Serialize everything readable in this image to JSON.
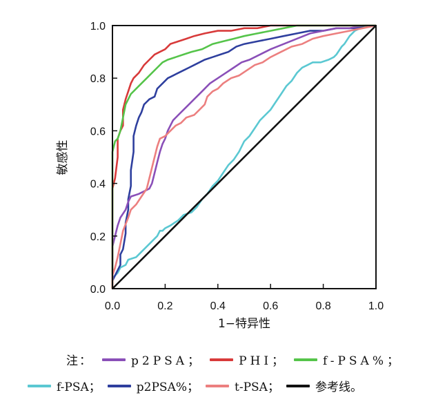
{
  "chart_data": {
    "type": "line",
    "xlabel": "1−特异性",
    "ylabel": "敏感性",
    "xlim": [
      0,
      1
    ],
    "ylim": [
      0,
      1
    ],
    "x_ticks": [
      "0.0",
      "0.2",
      "0.4",
      "0.6",
      "0.8",
      "1.0"
    ],
    "y_ticks": [
      "0.0",
      "0.2",
      "0.4",
      "0.6",
      "0.8",
      "1.0"
    ],
    "grid": false,
    "series": [
      {
        "name": "f-PSA",
        "color": "#5bc8d2",
        "points": [
          [
            0,
            0
          ],
          [
            0,
            0.04
          ],
          [
            0.02,
            0.06
          ],
          [
            0.03,
            0.08
          ],
          [
            0.05,
            0.09
          ],
          [
            0.06,
            0.11
          ],
          [
            0.09,
            0.12
          ],
          [
            0.11,
            0.14
          ],
          [
            0.12,
            0.15
          ],
          [
            0.15,
            0.18
          ],
          [
            0.17,
            0.2
          ],
          [
            0.18,
            0.22
          ],
          [
            0.19,
            0.22
          ],
          [
            0.2,
            0.23
          ],
          [
            0.22,
            0.24
          ],
          [
            0.25,
            0.26
          ],
          [
            0.27,
            0.28
          ],
          [
            0.3,
            0.29
          ],
          [
            0.32,
            0.31
          ],
          [
            0.34,
            0.34
          ],
          [
            0.36,
            0.36
          ],
          [
            0.38,
            0.39
          ],
          [
            0.4,
            0.41
          ],
          [
            0.42,
            0.44
          ],
          [
            0.44,
            0.47
          ],
          [
            0.46,
            0.49
          ],
          [
            0.48,
            0.52
          ],
          [
            0.5,
            0.56
          ],
          [
            0.52,
            0.58
          ],
          [
            0.54,
            0.61
          ],
          [
            0.56,
            0.64
          ],
          [
            0.58,
            0.66
          ],
          [
            0.6,
            0.68
          ],
          [
            0.62,
            0.71
          ],
          [
            0.64,
            0.74
          ],
          [
            0.66,
            0.77
          ],
          [
            0.68,
            0.79
          ],
          [
            0.7,
            0.82
          ],
          [
            0.72,
            0.84
          ],
          [
            0.74,
            0.85
          ],
          [
            0.76,
            0.86
          ],
          [
            0.79,
            0.86
          ],
          [
            0.82,
            0.87
          ],
          [
            0.84,
            0.88
          ],
          [
            0.85,
            0.89
          ],
          [
            0.87,
            0.92
          ],
          [
            0.88,
            0.93
          ],
          [
            0.9,
            0.96
          ],
          [
            0.92,
            0.98
          ],
          [
            0.94,
            0.99
          ],
          [
            1,
            1
          ]
        ]
      },
      {
        "name": "p2PSA%",
        "color": "#2e3f9e",
        "points": [
          [
            0,
            0
          ],
          [
            0,
            0.03
          ],
          [
            0.01,
            0.05
          ],
          [
            0.02,
            0.07
          ],
          [
            0.03,
            0.09
          ],
          [
            0.03,
            0.13
          ],
          [
            0.04,
            0.15
          ],
          [
            0.05,
            0.21
          ],
          [
            0.05,
            0.25
          ],
          [
            0.06,
            0.3
          ],
          [
            0.06,
            0.34
          ],
          [
            0.07,
            0.39
          ],
          [
            0.07,
            0.45
          ],
          [
            0.08,
            0.52
          ],
          [
            0.08,
            0.58
          ],
          [
            0.09,
            0.62
          ],
          [
            0.1,
            0.65
          ],
          [
            0.11,
            0.67
          ],
          [
            0.12,
            0.7
          ],
          [
            0.13,
            0.71
          ],
          [
            0.14,
            0.72
          ],
          [
            0.16,
            0.73
          ],
          [
            0.17,
            0.76
          ],
          [
            0.19,
            0.78
          ],
          [
            0.21,
            0.8
          ],
          [
            0.23,
            0.81
          ],
          [
            0.25,
            0.82
          ],
          [
            0.27,
            0.83
          ],
          [
            0.29,
            0.84
          ],
          [
            0.31,
            0.85
          ],
          [
            0.33,
            0.86
          ],
          [
            0.35,
            0.87
          ],
          [
            0.38,
            0.88
          ],
          [
            0.41,
            0.89
          ],
          [
            0.44,
            0.9
          ],
          [
            0.47,
            0.92
          ],
          [
            0.5,
            0.93
          ],
          [
            0.55,
            0.94
          ],
          [
            0.6,
            0.95
          ],
          [
            0.65,
            0.96
          ],
          [
            0.7,
            0.97
          ],
          [
            0.75,
            0.98
          ],
          [
            0.8,
            0.98
          ],
          [
            0.85,
            0.99
          ],
          [
            0.92,
            0.99
          ],
          [
            0.96,
            1
          ],
          [
            1,
            1
          ]
        ]
      },
      {
        "name": "p2PSA；",
        "color": "#8a4fb8",
        "points": [
          [
            0,
            0
          ],
          [
            0,
            0.16
          ],
          [
            0.01,
            0.2
          ],
          [
            0.02,
            0.24
          ],
          [
            0.03,
            0.27
          ],
          [
            0.05,
            0.3
          ],
          [
            0.06,
            0.33
          ],
          [
            0.07,
            0.35
          ],
          [
            0.1,
            0.36
          ],
          [
            0.12,
            0.37
          ],
          [
            0.14,
            0.38
          ],
          [
            0.15,
            0.4
          ],
          [
            0.16,
            0.44
          ],
          [
            0.17,
            0.48
          ],
          [
            0.18,
            0.52
          ],
          [
            0.19,
            0.55
          ],
          [
            0.2,
            0.57
          ],
          [
            0.21,
            0.6
          ],
          [
            0.22,
            0.62
          ],
          [
            0.23,
            0.64
          ],
          [
            0.25,
            0.66
          ],
          [
            0.27,
            0.68
          ],
          [
            0.29,
            0.7
          ],
          [
            0.31,
            0.72
          ],
          [
            0.33,
            0.74
          ],
          [
            0.35,
            0.76
          ],
          [
            0.37,
            0.78
          ],
          [
            0.4,
            0.8
          ],
          [
            0.43,
            0.82
          ],
          [
            0.46,
            0.84
          ],
          [
            0.49,
            0.86
          ],
          [
            0.52,
            0.87
          ],
          [
            0.56,
            0.89
          ],
          [
            0.6,
            0.91
          ],
          [
            0.65,
            0.93
          ],
          [
            0.7,
            0.95
          ],
          [
            0.75,
            0.97
          ],
          [
            0.8,
            0.98
          ],
          [
            0.85,
            0.99
          ],
          [
            0.9,
            0.99
          ],
          [
            0.95,
            1
          ],
          [
            1,
            1
          ]
        ]
      },
      {
        "name": "PHI；",
        "color": "#d83a3a",
        "points": [
          [
            0,
            0
          ],
          [
            0,
            0.25
          ],
          [
            0,
            0.38
          ],
          [
            0.01,
            0.42
          ],
          [
            0.02,
            0.5
          ],
          [
            0.02,
            0.57
          ],
          [
            0.03,
            0.6
          ],
          [
            0.04,
            0.62
          ],
          [
            0.04,
            0.68
          ],
          [
            0.05,
            0.72
          ],
          [
            0.06,
            0.75
          ],
          [
            0.07,
            0.78
          ],
          [
            0.08,
            0.8
          ],
          [
            0.1,
            0.82
          ],
          [
            0.12,
            0.85
          ],
          [
            0.14,
            0.87
          ],
          [
            0.16,
            0.89
          ],
          [
            0.18,
            0.9
          ],
          [
            0.2,
            0.91
          ],
          [
            0.22,
            0.93
          ],
          [
            0.25,
            0.94
          ],
          [
            0.28,
            0.95
          ],
          [
            0.31,
            0.96
          ],
          [
            0.35,
            0.97
          ],
          [
            0.4,
            0.98
          ],
          [
            0.45,
            0.98
          ],
          [
            0.5,
            0.99
          ],
          [
            0.55,
            0.99
          ],
          [
            0.6,
            1
          ],
          [
            0.7,
            1
          ],
          [
            0.8,
            1
          ],
          [
            1,
            1
          ]
        ]
      },
      {
        "name": "f-PSA%；",
        "color": "#55c44a",
        "points": [
          [
            0,
            0
          ],
          [
            0,
            0.4
          ],
          [
            0,
            0.52
          ],
          [
            0.01,
            0.56
          ],
          [
            0.02,
            0.57
          ],
          [
            0.03,
            0.6
          ],
          [
            0.04,
            0.65
          ],
          [
            0.05,
            0.7
          ],
          [
            0.06,
            0.72
          ],
          [
            0.07,
            0.74
          ],
          [
            0.09,
            0.76
          ],
          [
            0.11,
            0.78
          ],
          [
            0.13,
            0.8
          ],
          [
            0.15,
            0.82
          ],
          [
            0.17,
            0.84
          ],
          [
            0.19,
            0.86
          ],
          [
            0.21,
            0.87
          ],
          [
            0.24,
            0.88
          ],
          [
            0.27,
            0.89
          ],
          [
            0.3,
            0.9
          ],
          [
            0.34,
            0.91
          ],
          [
            0.38,
            0.93
          ],
          [
            0.42,
            0.94
          ],
          [
            0.46,
            0.95
          ],
          [
            0.5,
            0.96
          ],
          [
            0.55,
            0.97
          ],
          [
            0.6,
            0.98
          ],
          [
            0.65,
            0.99
          ],
          [
            0.7,
            1
          ],
          [
            0.8,
            1
          ],
          [
            1,
            1
          ]
        ]
      },
      {
        "name": "t-PSA；",
        "color": "#ec7f7f",
        "points": [
          [
            0,
            0
          ],
          [
            0,
            0.05
          ],
          [
            0.01,
            0.08
          ],
          [
            0.02,
            0.12
          ],
          [
            0.03,
            0.17
          ],
          [
            0.04,
            0.22
          ],
          [
            0.06,
            0.27
          ],
          [
            0.07,
            0.3
          ],
          [
            0.09,
            0.32
          ],
          [
            0.11,
            0.35
          ],
          [
            0.13,
            0.38
          ],
          [
            0.14,
            0.42
          ],
          [
            0.15,
            0.46
          ],
          [
            0.16,
            0.5
          ],
          [
            0.17,
            0.54
          ],
          [
            0.18,
            0.57
          ],
          [
            0.2,
            0.58
          ],
          [
            0.22,
            0.6
          ],
          [
            0.24,
            0.62
          ],
          [
            0.26,
            0.63
          ],
          [
            0.28,
            0.65
          ],
          [
            0.31,
            0.66
          ],
          [
            0.33,
            0.68
          ],
          [
            0.35,
            0.7
          ],
          [
            0.36,
            0.73
          ],
          [
            0.38,
            0.75
          ],
          [
            0.4,
            0.76
          ],
          [
            0.42,
            0.78
          ],
          [
            0.45,
            0.8
          ],
          [
            0.48,
            0.81
          ],
          [
            0.51,
            0.83
          ],
          [
            0.54,
            0.85
          ],
          [
            0.57,
            0.86
          ],
          [
            0.6,
            0.88
          ],
          [
            0.64,
            0.9
          ],
          [
            0.68,
            0.92
          ],
          [
            0.72,
            0.93
          ],
          [
            0.76,
            0.95
          ],
          [
            0.8,
            0.96
          ],
          [
            0.85,
            0.97
          ],
          [
            0.9,
            0.98
          ],
          [
            0.95,
            0.99
          ],
          [
            1,
            1
          ]
        ]
      },
      {
        "name": "参考线。",
        "color": "#111111",
        "points": [
          [
            0,
            0
          ],
          [
            1,
            1
          ]
        ]
      }
    ]
  },
  "legend": {
    "note_label": "注：",
    "row1": [
      {
        "label": "p2PSA；",
        "color": "#8a4fb8"
      },
      {
        "label": "PHI；",
        "color": "#d83a3a"
      },
      {
        "label": "f-PSA%；",
        "color": "#55c44a"
      }
    ],
    "row2": [
      {
        "label": "f-PSA；",
        "color": "#5bc8d2"
      },
      {
        "label": "p2PSA%；",
        "color": "#2e3f9e"
      },
      {
        "label": "t-PSA；",
        "color": "#ec7f7f"
      },
      {
        "label": "参考线。",
        "color": "#111111"
      }
    ]
  }
}
